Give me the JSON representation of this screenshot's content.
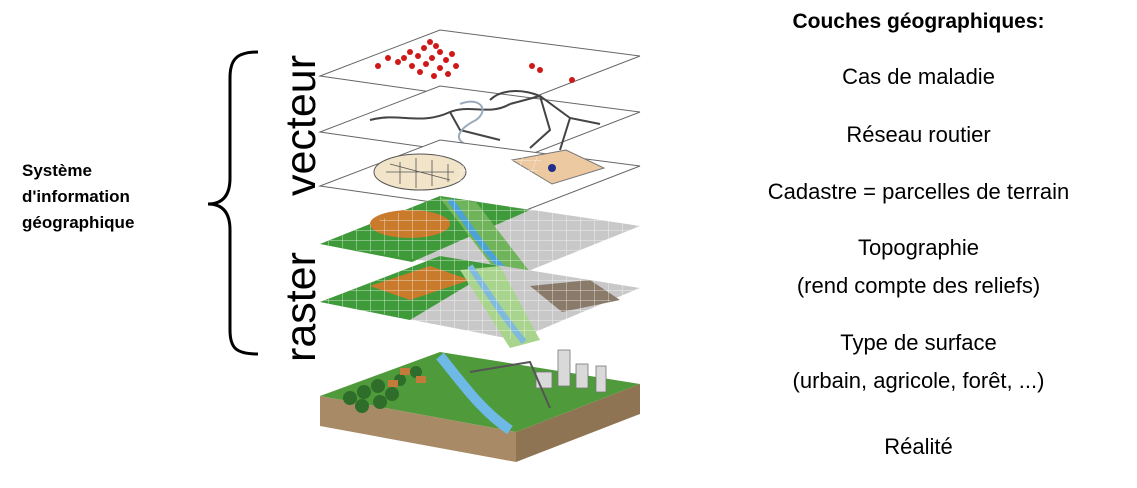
{
  "left": {
    "system_label_lines": [
      "Système",
      "d'information",
      "géographique"
    ],
    "vector_label": "vecteur",
    "raster_label": "raster"
  },
  "right": {
    "title": "Couches géographiques:",
    "layers": [
      {
        "line1": "Cas de maladie",
        "line2": ""
      },
      {
        "line1": "Réseau routier",
        "line2": ""
      },
      {
        "line1": "Cadastre = parcelles de terrain",
        "line2": ""
      },
      {
        "line1": "Topographie",
        "line2": "(rend compte des reliefs)"
      },
      {
        "line1": "Type de surface",
        "line2": "(urbain, agricole, forêt, ...)"
      },
      {
        "line1": "Réalité",
        "line2": ""
      }
    ]
  },
  "colors": {
    "disease_points": "#d01818",
    "roads": "#3a3a3a",
    "topography_green": "#3f9a3a",
    "water": "#4aa3d8",
    "terrain_orange": "#c97a2a"
  }
}
